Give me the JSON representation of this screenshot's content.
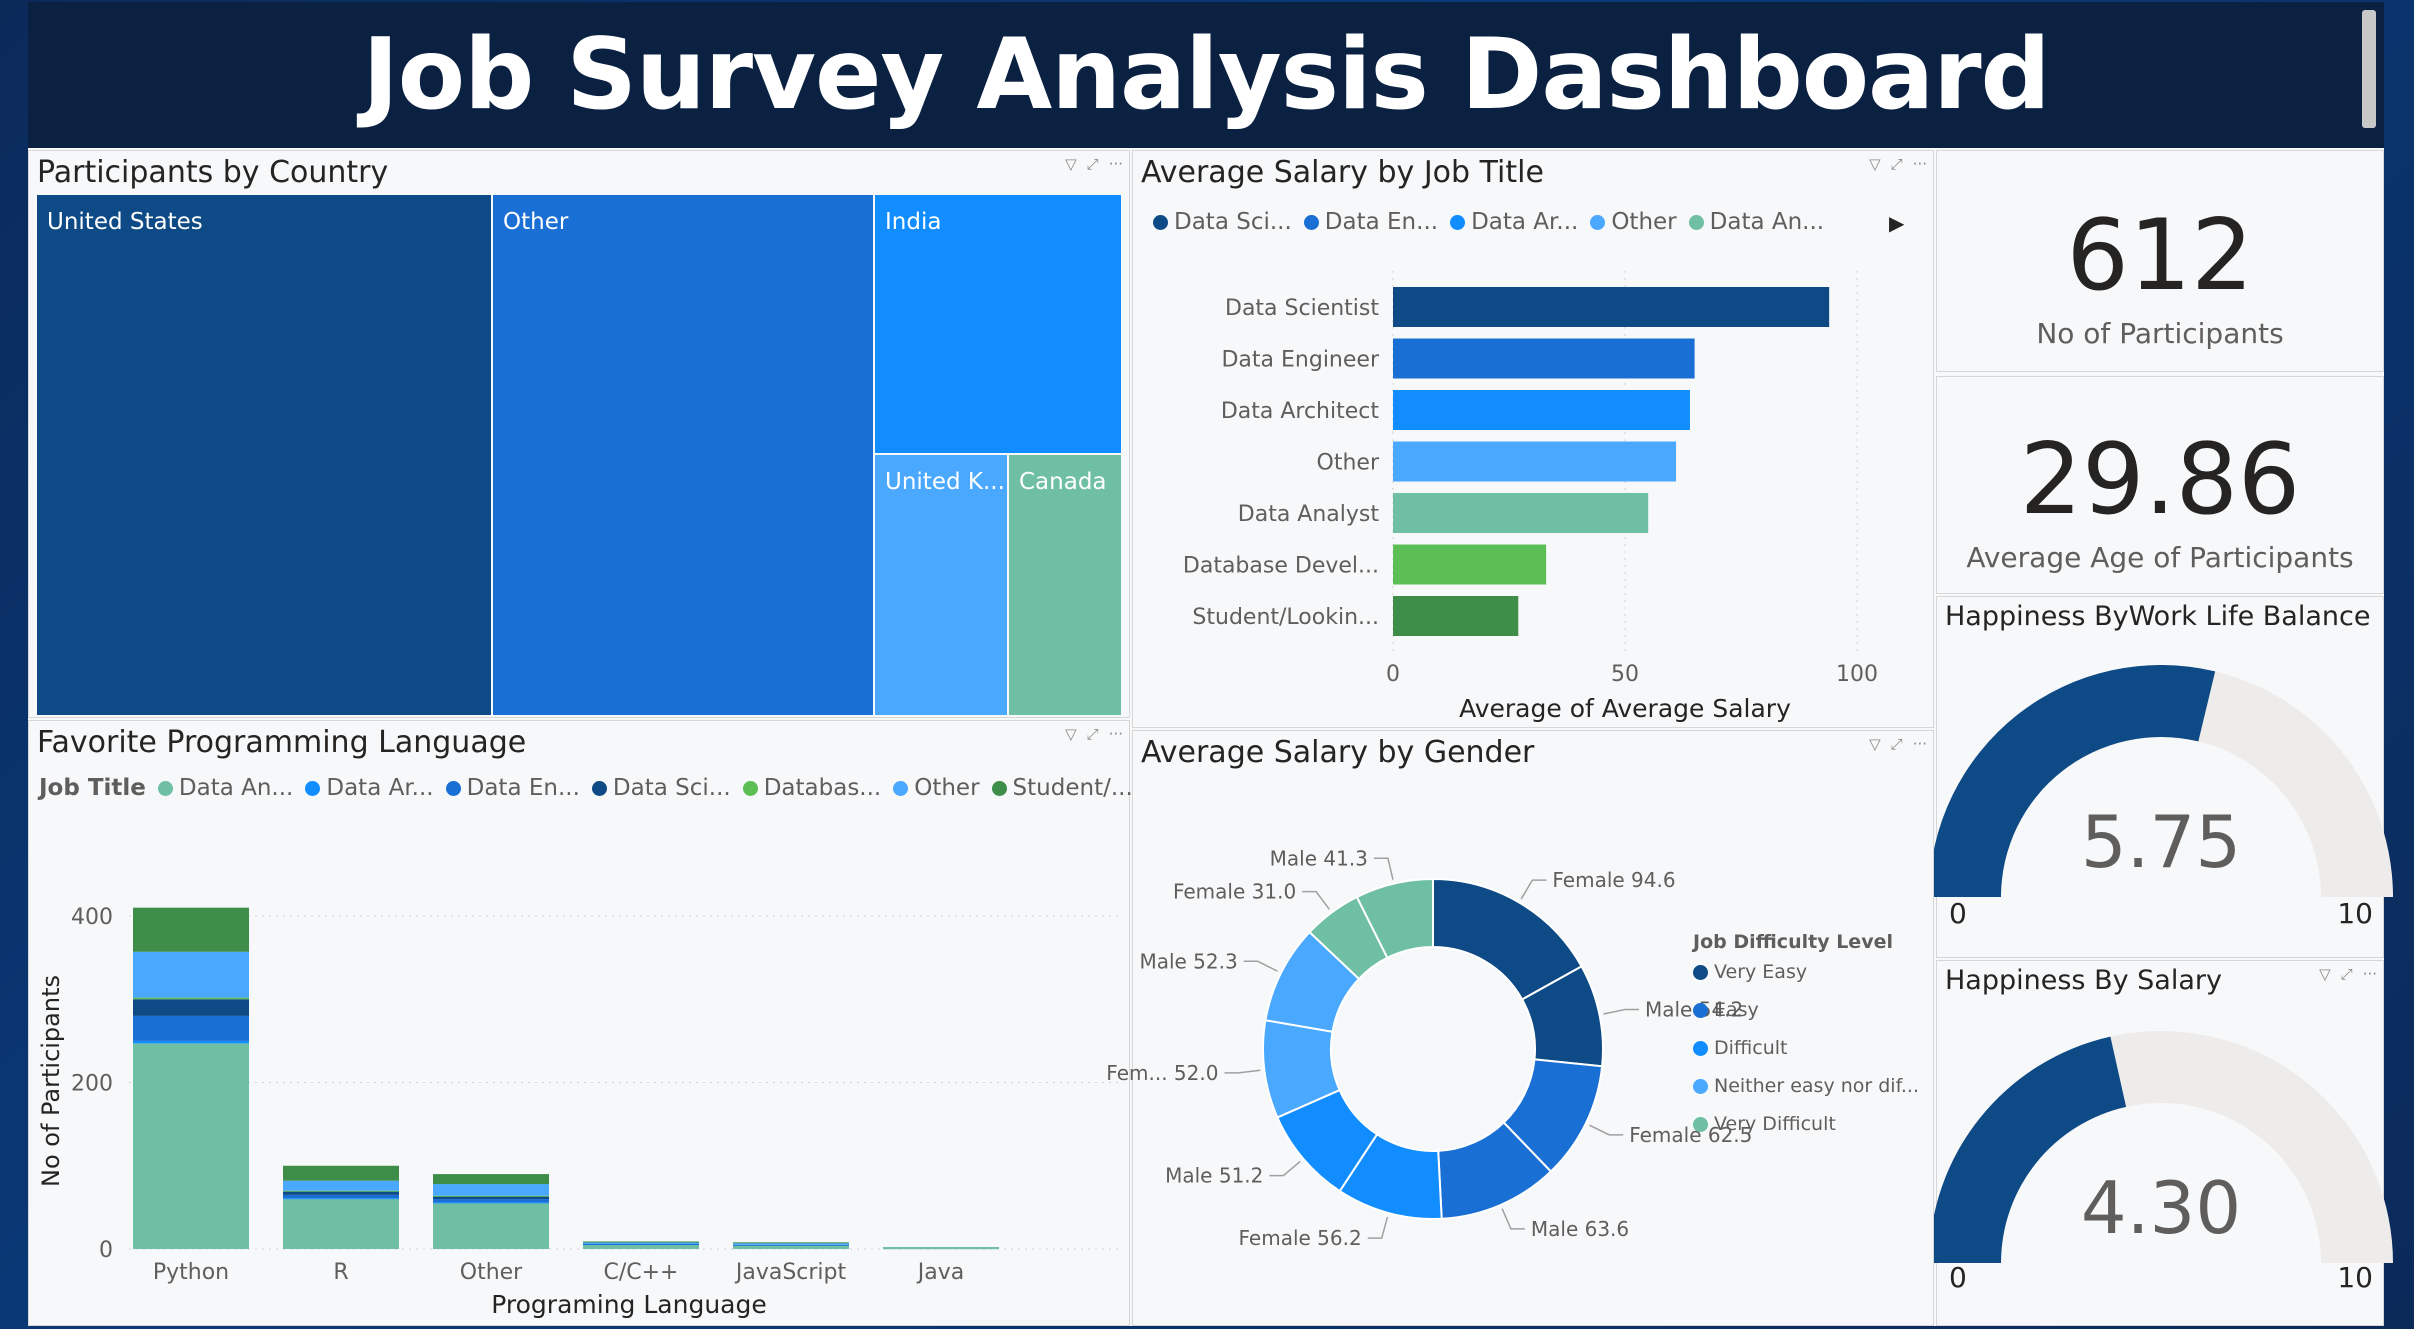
{
  "title": "Job Survey Analysis Dashboard",
  "treemap": {
    "title": "Participants by Country",
    "tiles": [
      {
        "label": "United States",
        "color": "#0e4a85"
      },
      {
        "label": "Other",
        "color": "#1a6fd4"
      },
      {
        "label": "India",
        "color": "#118dff"
      },
      {
        "label": "United K...",
        "color": "#4aa8ff"
      },
      {
        "label": "Canada",
        "color": "#6fbfa5"
      }
    ]
  },
  "salary_by_job": {
    "title": "Average Salary by Job Title",
    "legend": [
      {
        "label": "Data Sci...",
        "color": "#0e4a85"
      },
      {
        "label": "Data En...",
        "color": "#1a6fd4"
      },
      {
        "label": "Data Ar...",
        "color": "#118dff"
      },
      {
        "label": "Other",
        "color": "#4aa8ff"
      },
      {
        "label": "Data An...",
        "color": "#6fbfa5"
      }
    ]
  },
  "kpi_participants": {
    "value": "612",
    "label": "No of Participants"
  },
  "kpi_age": {
    "value": "29.86",
    "label": "Average Age of Participants"
  },
  "gauge_wlb": {
    "title": "Happiness ByWork Life Balance",
    "value": "5.75",
    "min": "0",
    "max": "10",
    "fraction": 0.575
  },
  "gauge_salary": {
    "title": "Happiness By Salary",
    "value": "4.30",
    "min": "0",
    "max": "10",
    "fraction": 0.43
  },
  "lang_chart": {
    "title": "Favorite Programming Language",
    "legend_title": "Job Title",
    "legend": [
      {
        "label": "Data An...",
        "color": "#6fbfa5"
      },
      {
        "label": "Data Ar...",
        "color": "#118dff"
      },
      {
        "label": "Data En...",
        "color": "#1a6fd4"
      },
      {
        "label": "Data Sci...",
        "color": "#0e4a85"
      },
      {
        "label": "Databas...",
        "color": "#5cbf56"
      },
      {
        "label": "Other",
        "color": "#4aa8ff"
      },
      {
        "label": "Student/...",
        "color": "#3e8e4a"
      }
    ]
  },
  "gender_chart": {
    "title": "Average Salary by Gender",
    "legend_title": "Job Difficulty Level",
    "legend": [
      {
        "label": "Very Easy",
        "color": "#0e4a85"
      },
      {
        "label": "Easy",
        "color": "#1a6fd4"
      },
      {
        "label": "Difficult",
        "color": "#118dff"
      },
      {
        "label": "Neither easy nor dif...",
        "color": "#4aa8ff"
      },
      {
        "label": "Very Difficult",
        "color": "#6fbfa5"
      }
    ]
  },
  "chart_data": [
    {
      "type": "bar",
      "title": "Average Salary by Job Title",
      "orientation": "horizontal",
      "categories": [
        "Data Scientist",
        "Data Engineer",
        "Data Architect",
        "Other",
        "Data Analyst",
        "Database Devel...",
        "Student/Lookin..."
      ],
      "values": [
        94,
        65,
        64,
        61,
        55,
        33,
        27
      ],
      "colors": [
        "#0e4a85",
        "#1a6fd4",
        "#118dff",
        "#4aa8ff",
        "#6fbfa5",
        "#5cbf56",
        "#3e8e4a"
      ],
      "xlabel": "Average of Average Salary",
      "xlim": [
        0,
        100
      ],
      "xticks": [
        "0",
        "50",
        "100"
      ]
    },
    {
      "type": "bar",
      "title": "Favorite Programming Language",
      "stacked": true,
      "categories": [
        "Python",
        "R",
        "Other",
        "C/C++",
        "JavaScript",
        "Java"
      ],
      "series": [
        {
          "name": "Data An...",
          "color": "#6fbfa5",
          "values": [
            247,
            60,
            55,
            5,
            4,
            1
          ]
        },
        {
          "name": "Data Ar...",
          "color": "#118dff",
          "values": [
            3,
            1,
            1,
            0,
            0,
            0
          ]
        },
        {
          "name": "Data En...",
          "color": "#1a6fd4",
          "values": [
            30,
            4,
            4,
            1,
            1,
            0
          ]
        },
        {
          "name": "Data Sci...",
          "color": "#0e4a85",
          "values": [
            20,
            4,
            3,
            0,
            0,
            0
          ]
        },
        {
          "name": "Databas...",
          "color": "#5cbf56",
          "values": [
            2,
            1,
            1,
            0,
            0,
            0
          ]
        },
        {
          "name": "Other",
          "color": "#4aa8ff",
          "values": [
            55,
            12,
            14,
            2,
            2,
            1
          ]
        },
        {
          "name": "Student/...",
          "color": "#3e8e4a",
          "values": [
            53,
            18,
            12,
            1,
            1,
            0
          ]
        }
      ],
      "xlabel": "Programing Language",
      "ylabel": "No of Participants",
      "ylim": [
        0,
        420
      ],
      "yticks": [
        "0",
        "200",
        "400"
      ]
    },
    {
      "type": "pie",
      "title": "Average Salary by Gender",
      "donut": true,
      "slices": [
        {
          "label": "Female 94.6",
          "value": 94.6,
          "color": "#0e4a85"
        },
        {
          "label": "Male 54.2",
          "value": 54.2,
          "color": "#0e4a85"
        },
        {
          "label": "Female 62.5",
          "value": 62.5,
          "color": "#1a6fd4"
        },
        {
          "label": "Male 63.6",
          "value": 63.6,
          "color": "#1a6fd4"
        },
        {
          "label": "Female 56.2",
          "value": 56.2,
          "color": "#118dff"
        },
        {
          "label": "Male 51.2",
          "value": 51.2,
          "color": "#118dff"
        },
        {
          "label": "Fem... 52.0",
          "value": 52.0,
          "color": "#4aa8ff"
        },
        {
          "label": "Male 52.3",
          "value": 52.3,
          "color": "#4aa8ff"
        },
        {
          "label": "Female 31.0",
          "value": 31.0,
          "color": "#6fbfa5"
        },
        {
          "label": "Male 41.3",
          "value": 41.3,
          "color": "#6fbfa5"
        }
      ]
    }
  ]
}
